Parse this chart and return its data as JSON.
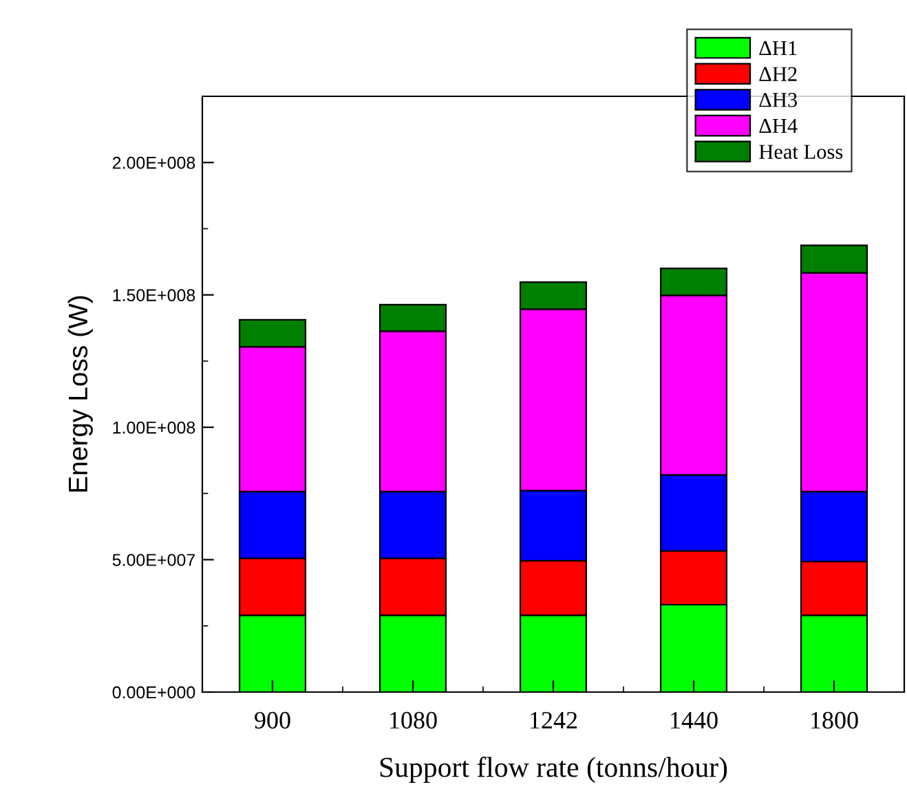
{
  "chart_data": {
    "type": "bar",
    "stacked": true,
    "xlabel": "Support flow rate (tonns/hour)",
    "ylabel": "Energy Loss (W)",
    "categories": [
      "900",
      "1080",
      "1242",
      "1440",
      "1800"
    ],
    "series": [
      {
        "name": "ΔH1",
        "color": "#00ff00",
        "values": [
          29000000,
          29000000,
          29000000,
          33000000,
          29000000
        ]
      },
      {
        "name": "ΔH2",
        "color": "#ff0000",
        "values": [
          21500000,
          21500000,
          20600000,
          20300000,
          20300000
        ]
      },
      {
        "name": "ΔH3",
        "color": "#0000ff",
        "values": [
          25200000,
          25200000,
          26500000,
          28700000,
          26400000
        ]
      },
      {
        "name": "ΔH4",
        "color": "#ff00ff",
        "values": [
          54700000,
          60600000,
          68500000,
          67800000,
          82600000
        ]
      },
      {
        "name": "Heat Loss",
        "color": "#007f00",
        "values": [
          10200000,
          10000000,
          10200000,
          10200000,
          10400000
        ]
      }
    ],
    "ylim": [
      0,
      225000000
    ],
    "yticks": [
      {
        "value": 0,
        "label": "0.00E+000"
      },
      {
        "value": 50000000,
        "label": "5.00E+007"
      },
      {
        "value": 100000000,
        "label": "1.00E+008"
      },
      {
        "value": 150000000,
        "label": "1.50E+008"
      },
      {
        "value": 200000000,
        "label": "2.00E+008"
      }
    ],
    "grid": false,
    "legend": "top right"
  }
}
